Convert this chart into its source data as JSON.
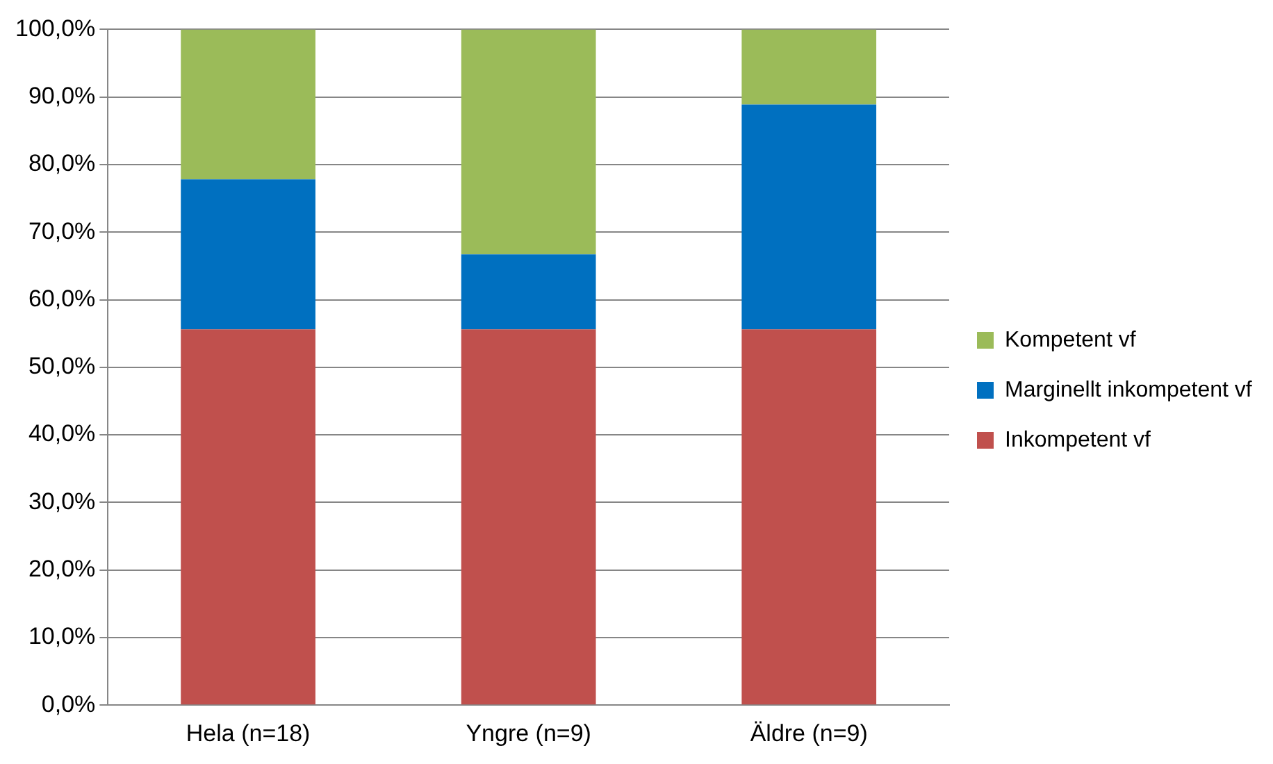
{
  "chart_data": {
    "type": "bar",
    "stacked": true,
    "categories": [
      "Hela (n=18)",
      "Yngre (n=9)",
      "Äldre (n=9)"
    ],
    "series": [
      {
        "name": "Inkompetent vf",
        "color": "#c0504d",
        "values": [
          55.6,
          55.6,
          55.6
        ]
      },
      {
        "name": "Marginellt inkompetent vf",
        "color": "#0070c0",
        "values": [
          22.2,
          11.1,
          33.3
        ]
      },
      {
        "name": "Kompetent vf",
        "color": "#9bbb59",
        "values": [
          22.2,
          33.3,
          11.1
        ]
      }
    ],
    "ylim": [
      0,
      100
    ],
    "yticks": [
      {
        "value": 0,
        "label": "0,0%"
      },
      {
        "value": 10,
        "label": "10,0%"
      },
      {
        "value": 20,
        "label": "20,0%"
      },
      {
        "value": 30,
        "label": "30,0%"
      },
      {
        "value": 40,
        "label": "40,0%"
      },
      {
        "value": 50,
        "label": "50,0%"
      },
      {
        "value": 60,
        "label": "60,0%"
      },
      {
        "value": 70,
        "label": "70,0%"
      },
      {
        "value": 80,
        "label": "80,0%"
      },
      {
        "value": 90,
        "label": "90,0%"
      },
      {
        "value": 100,
        "label": "100,0%"
      }
    ],
    "grid": "y",
    "legend": "right"
  }
}
